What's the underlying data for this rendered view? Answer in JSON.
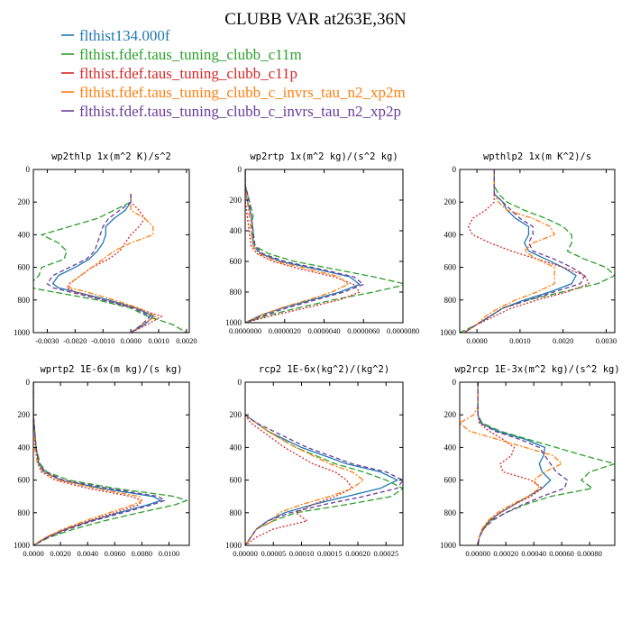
{
  "title": "CLUBB VAR at263E,36N",
  "colors": {
    "flthist134": "#1f77b4",
    "c11m": "#2ca02c",
    "c11p": "#d62728",
    "xp2m": "#ff7f0e",
    "xp2p": "#6a3d9a"
  },
  "legend": [
    {
      "label": "flthist134.000f",
      "color": "#1f77b4",
      "dash": "solid"
    },
    {
      "label": "flthist.fdef.taus_tuning_clubb_c11m",
      "color": "#2ca02c",
      "dash": "long-dash"
    },
    {
      "label": "flthist.fdef.taus_tuning_clubb_c11p",
      "color": "#d62728",
      "dash": "dot"
    },
    {
      "label": "flthist.fdef.taus_tuning_clubb_c_invrs_tau_n2_xp2m",
      "color": "#ff7f0e",
      "dash": "dash-dot"
    },
    {
      "label": "flthist.fdef.taus_tuning_clubb_c_invrs_tau_n2_xp2p",
      "color": "#6a3d9a",
      "dash": "dash"
    }
  ],
  "chart_data": [
    {
      "type": "line",
      "title": "wp2thlp  1x(m^2 K)/s^2",
      "xlim": [
        -0.0035,
        0.0021
      ],
      "ylim": [
        1000,
        0
      ],
      "xticks": [
        -0.003,
        -0.002,
        -0.001,
        0.0,
        0.001,
        0.002
      ],
      "xtick_labels": [
        "-0.0030",
        "-0.0020",
        "-0.0010",
        "0.0000",
        "0.0010",
        "0.0020"
      ],
      "yticks": [
        0,
        200,
        400,
        600,
        800,
        1000
      ],
      "ytick_labels": [
        "0",
        "200",
        "400",
        "600",
        "800",
        "1000"
      ],
      "y": [
        150,
        200,
        250,
        300,
        350,
        400,
        450,
        500,
        550,
        600,
        650,
        700,
        725,
        750,
        800,
        850,
        900,
        950,
        1000
      ],
      "series": [
        {
          "name": "flthist134.000f",
          "x": [
            0.0,
            0.0,
            -0.0002,
            -0.0006,
            -0.0009,
            -0.0009,
            -0.001,
            -0.0012,
            -0.0015,
            -0.002,
            -0.0026,
            -0.0028,
            -0.0026,
            -0.002,
            -0.0008,
            0.0002,
            0.0008,
            0.0005,
            0.0
          ]
        },
        {
          "name": "flthist.fdef.taus_tuning_clubb_c11m",
          "x": [
            0.0,
            0.0,
            -0.0006,
            -0.0012,
            -0.0022,
            -0.0032,
            -0.0026,
            -0.0023,
            -0.0024,
            -0.0032,
            -0.0033,
            -0.0036,
            -0.0036,
            -0.0028,
            -0.0012,
            0.0,
            0.0006,
            0.0015,
            0.002
          ]
        },
        {
          "name": "flthist.fdef.taus_tuning_clubb_c11p",
          "x": [
            0.0,
            0.0,
            0.0003,
            0.0005,
            0.0003,
            0.0,
            -0.0002,
            -0.0004,
            -0.0008,
            -0.0014,
            -0.0018,
            -0.0022,
            -0.0023,
            -0.002,
            -0.001,
            0.0002,
            0.0011,
            0.0006,
            0.0
          ]
        },
        {
          "name": "flthist.fdef.taus_tuning_clubb_c_invrs_tau_n2_xp2m",
          "x": [
            0.0,
            0.0,
            0.0,
            0.0005,
            0.0008,
            0.0008,
            0.0,
            -0.0006,
            -0.001,
            -0.0014,
            -0.0018,
            -0.0022,
            -0.0022,
            -0.0016,
            -0.0006,
            0.0003,
            0.0009,
            0.0004,
            0.0
          ]
        },
        {
          "name": "flthist.fdef.taus_tuning_clubb_c_invrs_tau_n2_xp2p",
          "x": [
            0.0,
            0.0,
            -0.0004,
            -0.0008,
            -0.001,
            -0.0011,
            -0.0012,
            -0.0013,
            -0.0016,
            -0.0022,
            -0.0028,
            -0.003,
            -0.0028,
            -0.0022,
            -0.001,
            0.0001,
            0.0007,
            0.0004,
            0.0
          ]
        }
      ]
    },
    {
      "type": "line",
      "title": "wp2rtp  1x(m^2 kg)/(s^2 kg)",
      "xlim": [
        0.0,
        8e-06
      ],
      "ylim": [
        1000,
        0
      ],
      "xticks": [
        0.0,
        2e-06,
        4e-06,
        6e-06,
        8e-06
      ],
      "xtick_labels": [
        "0.0000000",
        "0.0000020",
        "0.0000040",
        "0.0000060",
        "0.0000080"
      ],
      "yticks": [
        0,
        200,
        400,
        600,
        800,
        1000
      ],
      "ytick_labels": [
        "0",
        "200",
        "400",
        "600",
        "800",
        "1000"
      ],
      "y": [
        0,
        100,
        200,
        300,
        400,
        500,
        550,
        600,
        650,
        700,
        750,
        800,
        850,
        900,
        950,
        1000
      ],
      "series": [
        {
          "name": "flthist134.000f",
          "x": [
            0.0,
            0.0,
            1e-07,
            3e-07,
            4e-07,
            4e-07,
            8e-07,
            1.8e-06,
            3.6e-06,
            5.3e-06,
            5.8e-06,
            4.8e-06,
            3.4e-06,
            2e-06,
            8e-07,
            0.0
          ]
        },
        {
          "name": "flthist.fdef.taus_tuning_clubb_c11m",
          "x": [
            0.0,
            0.0,
            2e-07,
            4e-07,
            3e-07,
            5e-07,
            1.2e-06,
            2.5e-06,
            4.5e-06,
            6.5e-06,
            8.2e-06,
            6.5e-06,
            4.5e-06,
            2.8e-06,
            1.2e-06,
            0.0
          ]
        },
        {
          "name": "flthist.fdef.taus_tuning_clubb_c11p",
          "x": [
            0.0,
            0.0,
            0.0,
            1e-07,
            2e-07,
            3e-07,
            6e-07,
            1.4e-06,
            2.8e-06,
            4.5e-06,
            5.5e-06,
            5.8e-06,
            4.8e-06,
            3.2e-06,
            1.5e-06,
            0.0
          ]
        },
        {
          "name": "flthist.fdef.taus_tuning_clubb_c_invrs_tau_n2_xp2m",
          "x": [
            0.0,
            0.0,
            1e-07,
            2e-07,
            3e-07,
            4e-07,
            7e-07,
            1.6e-06,
            3.2e-06,
            4.8e-06,
            5.2e-06,
            4.4e-06,
            3.2e-06,
            1.9e-06,
            8e-07,
            0.0
          ]
        },
        {
          "name": "flthist.fdef.taus_tuning_clubb_c_invrs_tau_n2_xp2p",
          "x": [
            0.0,
            0.0,
            2e-07,
            3e-07,
            4e-07,
            5e-07,
            9e-07,
            2e-06,
            3.8e-06,
            5.5e-06,
            6e-06,
            5e-06,
            3.6e-06,
            2.2e-06,
            1e-06,
            0.0
          ]
        }
      ]
    },
    {
      "type": "line",
      "title": "wpthlp2  1x(m K^2)/s",
      "xlim": [
        -0.0004,
        0.0032
      ],
      "ylim": [
        1000,
        0
      ],
      "xticks": [
        0.0,
        0.001,
        0.002,
        0.003
      ],
      "xtick_labels": [
        "0.0000",
        "0.0010",
        "0.0020",
        "0.0030"
      ],
      "yticks": [
        0,
        200,
        400,
        600,
        800,
        1000
      ],
      "ytick_labels": [
        "0",
        "200",
        "400",
        "600",
        "800",
        "1000"
      ],
      "y": [
        0,
        100,
        150,
        200,
        250,
        300,
        350,
        400,
        450,
        500,
        550,
        600,
        650,
        700,
        750,
        800,
        850,
        900,
        950,
        1000
      ],
      "series": [
        {
          "name": "flthist134.000f",
          "x": [
            0.0004,
            0.0004,
            0.0004,
            0.0006,
            0.0007,
            0.0009,
            0.0012,
            0.0012,
            0.0011,
            0.0012,
            0.0016,
            0.002,
            0.0023,
            0.0022,
            0.0017,
            0.0011,
            0.0006,
            0.0003,
            0.0,
            -0.0003
          ]
        },
        {
          "name": "flthist.fdef.taus_tuning_clubb_c11m",
          "x": [
            0.0004,
            0.0004,
            0.0005,
            0.0007,
            0.0011,
            0.0016,
            0.002,
            0.0022,
            0.0022,
            0.0021,
            0.0025,
            0.003,
            0.0032,
            0.0028,
            0.002,
            0.0012,
            0.0006,
            0.0003,
            0.0,
            -0.0004
          ]
        },
        {
          "name": "flthist.fdef.taus_tuning_clubb_c11p",
          "x": [
            0.0004,
            0.0004,
            0.0004,
            0.0004,
            0.0002,
            -0.0001,
            -0.0002,
            -0.0001,
            0.0003,
            0.0008,
            0.0014,
            0.002,
            0.0025,
            0.0026,
            0.0021,
            0.0014,
            0.0008,
            0.0004,
            0.0,
            -0.0003
          ]
        },
        {
          "name": "flthist.fdef.taus_tuning_clubb_c_invrs_tau_n2_xp2m",
          "x": [
            0.0004,
            0.0004,
            0.0004,
            0.0005,
            0.0007,
            0.0013,
            0.0017,
            0.0018,
            0.0013,
            0.0011,
            0.0014,
            0.0018,
            0.0018,
            0.0018,
            0.0014,
            0.0009,
            0.0005,
            0.0002,
            0.0,
            -0.0003
          ]
        },
        {
          "name": "flthist.fdef.taus_tuning_clubb_c_invrs_tau_n2_xp2p",
          "x": [
            0.0004,
            0.0004,
            0.0004,
            0.0006,
            0.0008,
            0.001,
            0.0013,
            0.0013,
            0.0012,
            0.0013,
            0.0018,
            0.0022,
            0.0025,
            0.0024,
            0.0018,
            0.0012,
            0.0006,
            0.0003,
            0.0,
            -0.0003
          ]
        }
      ]
    },
    {
      "type": "line",
      "title": "wprtp2  1E-6x(m kg)/(s kg)",
      "xlim": [
        0.0,
        0.0115
      ],
      "ylim": [
        1000,
        0
      ],
      "xticks": [
        0.0,
        0.002,
        0.004,
        0.006,
        0.008,
        0.01
      ],
      "xtick_labels": [
        "0.0000",
        "0.0020",
        "0.0040",
        "0.0060",
        "0.0080",
        "0.0100"
      ],
      "yticks": [
        0,
        200,
        400,
        600,
        800,
        1000
      ],
      "ytick_labels": [
        "0",
        "200",
        "400",
        "600",
        "800",
        "1000"
      ],
      "y": [
        0,
        100,
        200,
        300,
        400,
        500,
        550,
        600,
        650,
        700,
        725,
        750,
        800,
        850,
        900,
        950,
        1000
      ],
      "series": [
        {
          "name": "flthist134.000f",
          "x": [
            0.0,
            0.0,
            0.0,
            0.0001,
            0.0002,
            0.0004,
            0.0008,
            0.002,
            0.005,
            0.0088,
            0.0094,
            0.0085,
            0.0063,
            0.0042,
            0.0024,
            0.001,
            0.0
          ]
        },
        {
          "name": "flthist.fdef.taus_tuning_clubb_c11m",
          "x": [
            0.0,
            0.0,
            0.0,
            0.0001,
            0.0002,
            0.0005,
            0.001,
            0.0026,
            0.006,
            0.0104,
            0.0113,
            0.0105,
            0.0078,
            0.0052,
            0.003,
            0.0012,
            0.0
          ]
        },
        {
          "name": "flthist.fdef.taus_tuning_clubb_c11p",
          "x": [
            0.0,
            0.0,
            0.0,
            0.0001,
            0.0002,
            0.0003,
            0.0006,
            0.0016,
            0.004,
            0.0072,
            0.008,
            0.0078,
            0.006,
            0.0041,
            0.0024,
            0.001,
            0.0
          ]
        },
        {
          "name": "flthist.fdef.taus_tuning_clubb_c_invrs_tau_n2_xp2m",
          "x": [
            0.0,
            0.0,
            0.0,
            0.0001,
            0.0001,
            0.0003,
            0.0007,
            0.0019,
            0.0046,
            0.0078,
            0.008,
            0.0074,
            0.0056,
            0.0038,
            0.0022,
            0.0009,
            0.0
          ]
        },
        {
          "name": "flthist.fdef.taus_tuning_clubb_c_invrs_tau_n2_xp2p",
          "x": [
            0.0,
            0.0,
            0.0,
            0.0001,
            0.0002,
            0.0004,
            0.0009,
            0.0022,
            0.0055,
            0.0092,
            0.0097,
            0.0088,
            0.0066,
            0.0044,
            0.0026,
            0.0011,
            0.0
          ]
        }
      ]
    },
    {
      "type": "line",
      "title": "rcp2  1E-6x(kg^2)/(kg^2)",
      "xlim": [
        0.0,
        0.00028
      ],
      "ylim": [
        1000,
        0
      ],
      "xticks": [
        0.0,
        5e-05,
        0.0001,
        0.00015,
        0.0002,
        0.00025
      ],
      "xtick_labels": [
        "0.00000",
        "0.00005",
        "0.00010",
        "0.00015",
        "0.00020",
        "0.00025"
      ],
      "yticks": [
        0,
        200,
        400,
        600,
        800,
        1000
      ],
      "ytick_labels": [
        "0",
        "200",
        "400",
        "600",
        "800",
        "1000"
      ],
      "y": [
        200,
        250,
        300,
        400,
        500,
        550,
        600,
        650,
        700,
        750,
        800,
        850,
        900,
        950,
        1000
      ],
      "series": [
        {
          "name": "flthist134.000f",
          "x": [
            0.0,
            2e-05,
            4e-05,
            0.0001,
            0.00018,
            0.00024,
            0.00027,
            0.00024,
            0.00018,
            0.00012,
            7e-05,
            4e-05,
            2e-05,
            1e-05,
            0.0
          ]
        },
        {
          "name": "flthist.fdef.taus_tuning_clubb_c11m",
          "x": [
            0.0,
            2e-05,
            4e-05,
            9e-05,
            0.00016,
            0.00021,
            0.00025,
            0.00028,
            0.00026,
            0.00018,
            9e-05,
            5e-05,
            2e-05,
            1e-05,
            0.0
          ]
        },
        {
          "name": "flthist.fdef.taus_tuning_clubb_c11p",
          "x": [
            0.0,
            1e-05,
            3e-05,
            7e-05,
            0.00012,
            0.00016,
            0.00018,
            0.00019,
            0.00016,
            0.00012,
            9e-05,
            0.00011,
            5e-05,
            2e-05,
            0.0
          ]
        },
        {
          "name": "flthist.fdef.taus_tuning_clubb_c_invrs_tau_n2_xp2m",
          "x": [
            0.0,
            2e-05,
            4e-05,
            9e-05,
            0.00015,
            0.00019,
            0.00021,
            0.00019,
            0.00015,
            0.0001,
            6e-05,
            5e-05,
            2e-05,
            1e-05,
            0.0
          ]
        },
        {
          "name": "flthist.fdef.taus_tuning_clubb_c_invrs_tau_n2_xp2p",
          "x": [
            0.0,
            2e-05,
            5e-05,
            0.00011,
            0.00019,
            0.00025,
            0.00028,
            0.00027,
            0.00021,
            0.00014,
            8e-05,
            4e-05,
            2e-05,
            1e-05,
            0.0
          ]
        }
      ]
    },
    {
      "type": "line",
      "title": "wp2rcp  1E-3x(m^2 kg)/(s^2 kg)",
      "xlim": [
        -0.00013,
        0.00098
      ],
      "ylim": [
        1000,
        0
      ],
      "xticks": [
        0.0,
        0.0002,
        0.0004,
        0.0006,
        0.0008
      ],
      "xtick_labels": [
        "0.00000",
        "0.00020",
        "0.00040",
        "0.00060",
        "0.00080"
      ],
      "yticks": [
        0,
        200,
        400,
        600,
        800,
        1000
      ],
      "ytick_labels": [
        "0",
        "200",
        "400",
        "600",
        "800",
        "1000"
      ],
      "y": [
        0,
        150,
        200,
        250,
        300,
        350,
        400,
        450,
        500,
        550,
        600,
        650,
        700,
        750,
        800,
        850,
        900,
        950,
        1000
      ],
      "series": [
        {
          "name": "flthist134.000f",
          "x": [
            0.0,
            0.0,
            0.0,
            2e-05,
            0.00014,
            0.00034,
            0.00048,
            0.00047,
            0.00044,
            0.00046,
            0.00052,
            0.00046,
            0.00036,
            0.00026,
            0.00016,
            8e-05,
            4e-05,
            1e-05,
            0.0
          ]
        },
        {
          "name": "flthist.fdef.taus_tuning_clubb_c11m",
          "x": [
            0.0,
            0.0,
            0.0,
            3e-05,
            0.00016,
            0.00036,
            0.00056,
            0.00076,
            0.00098,
            0.0008,
            0.00074,
            0.00082,
            0.00052,
            0.00034,
            0.0002,
            9e-05,
            4e-05,
            1e-05,
            0.0
          ]
        },
        {
          "name": "flthist.fdef.taus_tuning_clubb_c11p",
          "x": [
            0.0,
            0.0,
            0.0,
            1e-05,
            8e-05,
            0.00018,
            0.00026,
            0.00024,
            0.00016,
            0.00018,
            0.00038,
            0.00046,
            0.00038,
            0.00026,
            0.00016,
            8e-05,
            3e-05,
            1e-05,
            0.0
          ]
        },
        {
          "name": "flthist.fdef.taus_tuning_clubb_c_invrs_tau_n2_xp2m",
          "x": [
            0.0,
            0.0,
            -3e-05,
            -0.00013,
            -6e-05,
            0.00014,
            0.00034,
            0.00054,
            0.0006,
            0.00048,
            0.0004,
            0.00044,
            0.00036,
            0.00024,
            0.00014,
            7e-05,
            3e-05,
            1e-05,
            0.0
          ]
        },
        {
          "name": "flthist.fdef.taus_tuning_clubb_c_invrs_tau_n2_xp2p",
          "x": [
            0.0,
            0.0,
            0.0,
            2e-05,
            0.00012,
            0.0003,
            0.00044,
            0.00048,
            0.00052,
            0.00056,
            0.00064,
            0.00062,
            0.00046,
            0.00032,
            0.0002,
            0.0001,
            4e-05,
            1e-05,
            0.0
          ]
        }
      ]
    }
  ]
}
